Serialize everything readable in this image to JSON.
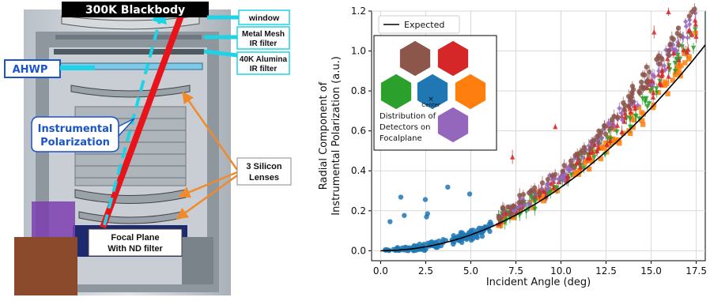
{
  "diagram": {
    "blackbody_label": "300K Blackbody",
    "window_label": "window",
    "mesh_label_1": "Metal Mesh",
    "mesh_label_2": "IR filter",
    "alumina_label_1": "40K Alumina",
    "alumina_label_2": "IR filter",
    "ahwp_label": "AHWP",
    "instr_label_1": "Instrumental",
    "instr_label_2": "Polarization",
    "lenses_label_1": "3 Silicon",
    "lenses_label_2": "Lenses",
    "focal_label_1": "Focal Plane",
    "focal_label_2": "With ND filter",
    "colors": {
      "ray": "#e8141b",
      "dashed": "#1ed3e6",
      "ahwp": "#1a54c6",
      "lens_pointer": "#f08a2d"
    }
  },
  "chart_data": {
    "type": "scatter",
    "xlabel": "Incident Angle (deg)",
    "ylabel_line1": "Radial Component of",
    "ylabel_line2": "Instrumental Polarization (a.u.)",
    "xlim": [
      -0.5,
      18
    ],
    "ylim": [
      -0.05,
      1.2
    ],
    "xticks": [
      "0.0",
      "2.5",
      "5.0",
      "7.5",
      "10.0",
      "12.5",
      "15.0",
      "17.5"
    ],
    "xtick_values": [
      0,
      2.5,
      5,
      7.5,
      10,
      12.5,
      15,
      17.5
    ],
    "yticks": [
      "0.0",
      "0.2",
      "0.4",
      "0.6",
      "0.8",
      "1.0",
      "1.2"
    ],
    "ytick_values": [
      0,
      0.2,
      0.4,
      0.6,
      0.8,
      1.0,
      1.2
    ],
    "grid": true,
    "legend": {
      "placement": "top-left",
      "entries": [
        "Expected"
      ]
    },
    "expected_curve": {
      "coefficient": 0.00318,
      "exponent": 2,
      "x_range": [
        0,
        18
      ]
    },
    "series": [
      {
        "color": "#1f77b4",
        "marker": "circle",
        "x_range": [
          0.2,
          6.2
        ]
      },
      {
        "color": "#ff7f0e",
        "marker": "square",
        "x_range": [
          6.5,
          17.5
        ]
      },
      {
        "color": "#2ca02c",
        "marker": "triangle-down",
        "x_range": [
          6.5,
          17.5
        ]
      },
      {
        "color": "#d62728",
        "marker": "triangle-up",
        "x_range": [
          6.5,
          17.5
        ]
      },
      {
        "color": "#9467bd",
        "marker": "diamond",
        "x_range": [
          6.5,
          17.5
        ]
      },
      {
        "color": "#8c564b",
        "marker": "circle",
        "x_range": [
          6.5,
          17.5
        ]
      }
    ],
    "inset": {
      "text_1": "Distribution of",
      "text_2": "Detectors on",
      "text_3": "Focalplane",
      "center_label": "Center",
      "hex_colors": [
        "#8c564b",
        "#d62728",
        "#2ca02c",
        "#1f77b4",
        "#ff7f0e",
        "#9467bd"
      ]
    }
  }
}
